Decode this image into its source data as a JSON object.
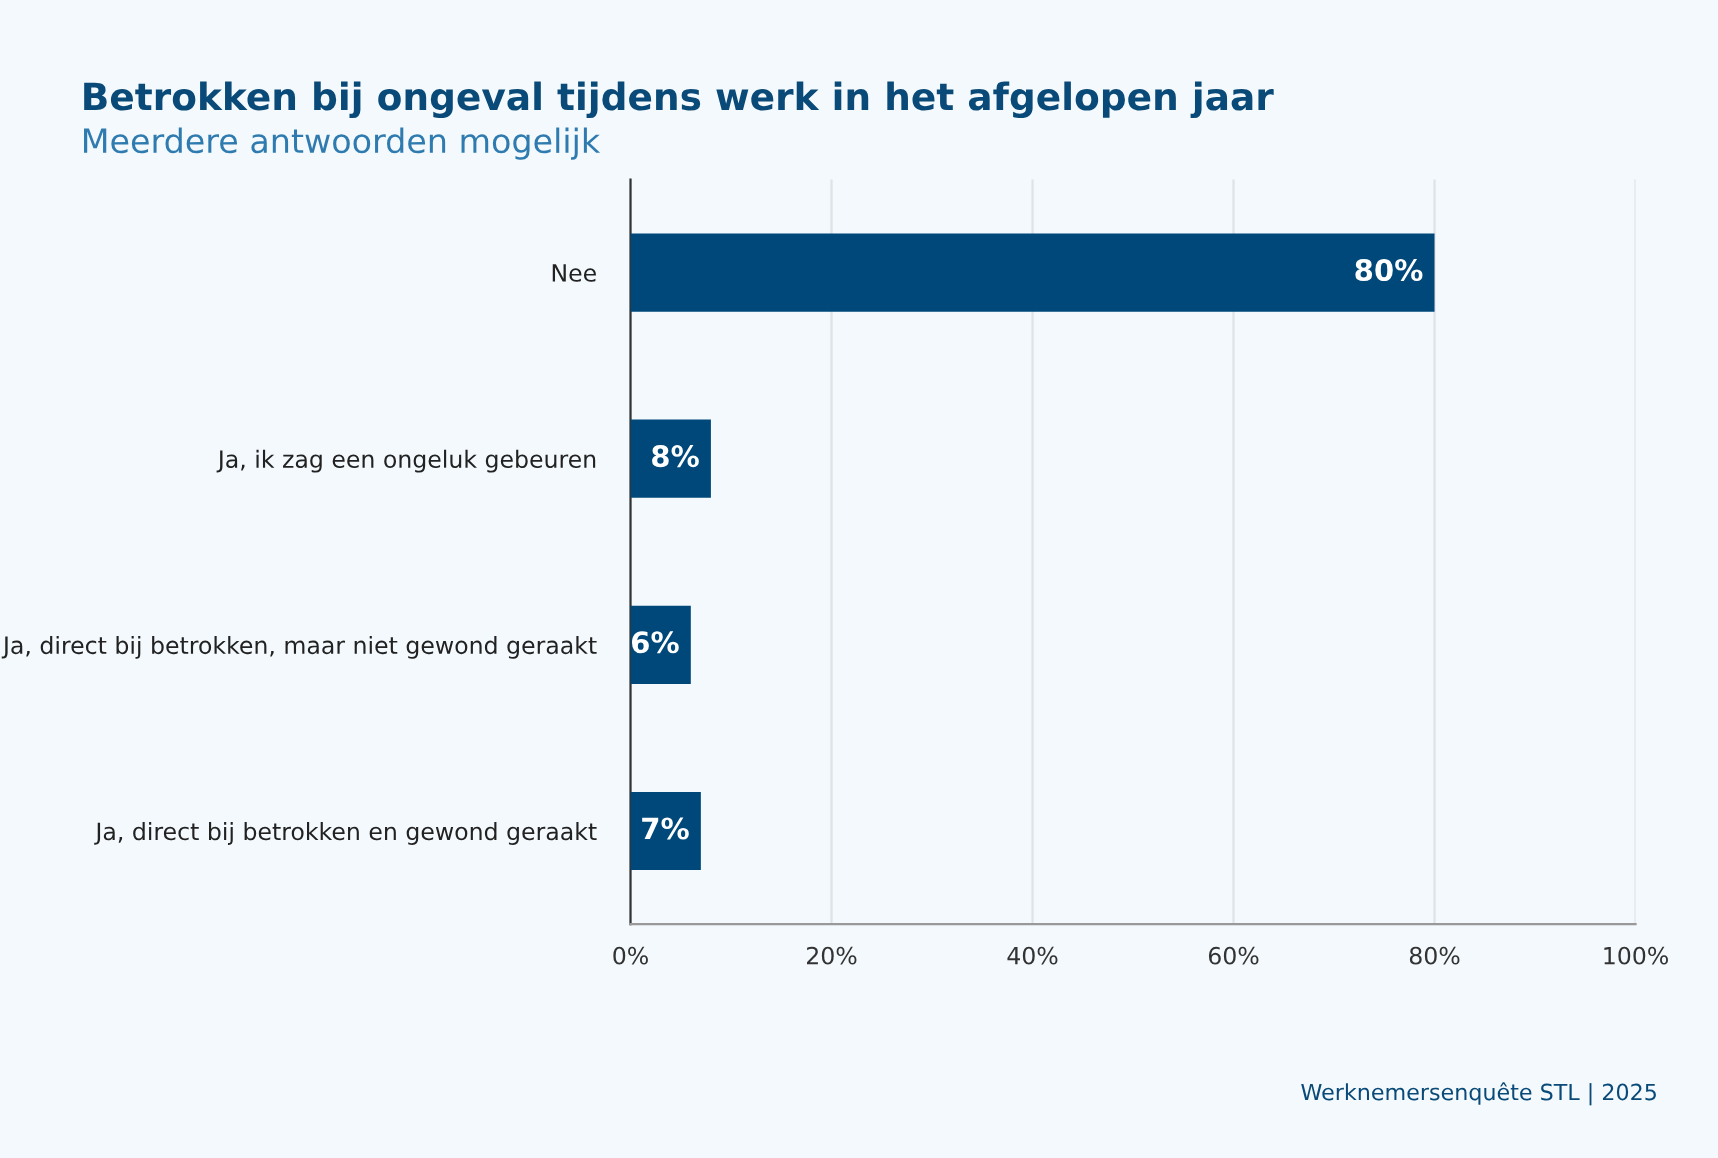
{
  "chart_data": {
    "type": "bar",
    "orientation": "horizontal",
    "title": "Betrokken bij ongeval tijdens werk in het afgelopen jaar",
    "subtitle": "Meerdere antwoorden mogelijk",
    "categories": [
      "Nee",
      "Ja, ik zag een ongeluk gebeuren",
      "Ja, direct bij betrokken, maar niet gewond geraakt",
      "Ja, direct bij betrokken en gewond geraakt"
    ],
    "values": [
      80,
      8,
      6,
      7
    ],
    "value_labels": [
      "80%",
      "8%",
      "6%",
      "7%"
    ],
    "color": "#00487a",
    "xlim": [
      0,
      100
    ],
    "xticks": [
      {
        "value": 0,
        "label": "0%"
      },
      {
        "value": 20,
        "label": "20%"
      },
      {
        "value": 40,
        "label": "40%"
      },
      {
        "value": 60,
        "label": "60%"
      },
      {
        "value": 80,
        "label": "80%"
      },
      {
        "value": 100,
        "label": "100%"
      }
    ],
    "grid": "x",
    "annotations": [
      "Werknemersenquête STL | 2025"
    ]
  }
}
